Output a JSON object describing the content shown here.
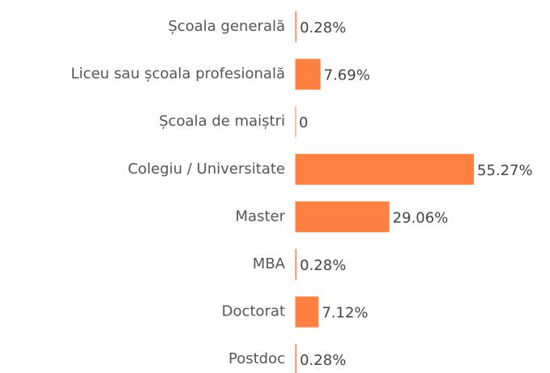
{
  "chart_data": {
    "type": "bar",
    "orientation": "horizontal",
    "categories": [
      "Școala generală",
      "Liceu sau școala profesională",
      "Școala de maiștri",
      "Colegiu / Universitate",
      "Master",
      "MBA",
      "Doctorat",
      "Postdoc"
    ],
    "values": [
      0.28,
      7.69,
      0,
      55.27,
      29.06,
      0.28,
      7.12,
      0.28
    ],
    "value_labels": [
      "0.28%",
      "7.69%",
      "0",
      "55.27%",
      "29.06%",
      "0.28%",
      "7.12%",
      "0.28%"
    ],
    "color": "#ff8040"
  }
}
